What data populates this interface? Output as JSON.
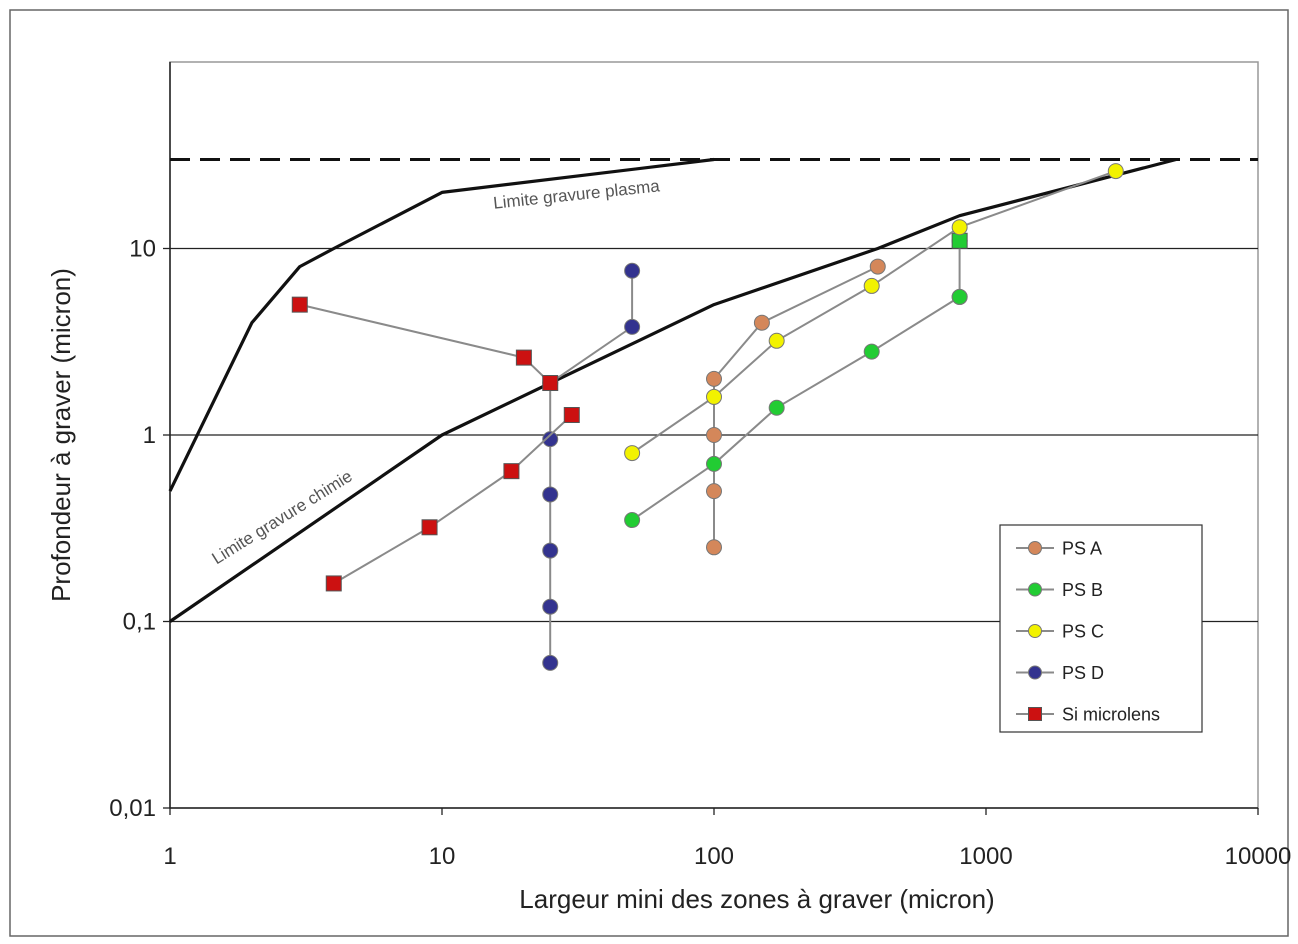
{
  "chart_data": {
    "type": "scatter",
    "title": "",
    "xlabel": "Largeur mini des zones à graver (micron)",
    "ylabel": "Profondeur à graver (micron)",
    "x_scale": "log",
    "y_scale": "log",
    "xlim": [
      1,
      10000
    ],
    "ylim": [
      0.01,
      100
    ],
    "x_ticks": [
      1,
      10,
      100,
      1000,
      10000
    ],
    "x_tick_labels": [
      "1",
      "10",
      "100",
      "1000",
      "10000"
    ],
    "y_ticks": [
      0.01,
      0.1,
      1,
      10
    ],
    "y_tick_labels": [
      "0,01",
      "0,1",
      "1",
      "10"
    ],
    "grid": "horizontal",
    "legend_position": "bottom-right",
    "reference_lines": [
      {
        "label": "Limite gravure plasma",
        "style": "solid",
        "points": [
          [
            1,
            0.5
          ],
          [
            2,
            4
          ],
          [
            3,
            8
          ],
          [
            4,
            10
          ],
          [
            10,
            20
          ],
          [
            100,
            30
          ]
        ]
      },
      {
        "label": "Limite gravure chimie",
        "style": "solid",
        "points": [
          [
            1,
            0.1
          ],
          [
            10,
            1
          ],
          [
            100,
            5
          ],
          [
            400,
            10
          ],
          [
            800,
            15
          ],
          [
            5000,
            30
          ]
        ]
      },
      {
        "label": "",
        "style": "dashed",
        "points": [
          [
            1,
            30
          ],
          [
            10000,
            30
          ]
        ]
      }
    ],
    "series": [
      {
        "name": "PS A",
        "color": "#d4875a",
        "marker": "circle",
        "segments": [
          [
            [
              100,
              0.25
            ],
            [
              100,
              0.5
            ],
            [
              100,
              1
            ],
            [
              100,
              2
            ],
            [
              150,
              4
            ],
            [
              400,
              8
            ]
          ]
        ]
      },
      {
        "name": "PS B",
        "color": "#22cc33",
        "marker": "circle",
        "segments": [
          [
            [
              50,
              0.35
            ],
            [
              100,
              0.7
            ],
            [
              170,
              1.4
            ],
            [
              380,
              2.8
            ],
            [
              800,
              5.5
            ]
          ],
          [
            [
              800,
              11
            ],
            [
              800,
              5.5
            ]
          ]
        ],
        "extra_markers": [
          {
            "x": 800,
            "y": 11,
            "shape": "square"
          }
        ]
      },
      {
        "name": "PS C",
        "color": "#f2f200",
        "marker": "circle",
        "segments": [
          [
            [
              50,
              0.8
            ],
            [
              100,
              1.6
            ],
            [
              170,
              3.2
            ],
            [
              380,
              6.3
            ],
            [
              800,
              13
            ],
            [
              3000,
              26
            ]
          ]
        ]
      },
      {
        "name": "PS D",
        "color": "#33338f",
        "marker": "circle",
        "segments": [
          [
            [
              25,
              0.06
            ],
            [
              25,
              0.12
            ],
            [
              25,
              0.24
            ],
            [
              25,
              0.48
            ],
            [
              25,
              0.95
            ],
            [
              25,
              1.9
            ],
            [
              50,
              3.8
            ],
            [
              50,
              7.6
            ]
          ]
        ]
      },
      {
        "name": "Si microlens",
        "color": "#cc1111",
        "marker": "square",
        "segments": [
          [
            [
              4,
              0.16
            ],
            [
              9,
              0.32
            ],
            [
              18,
              0.64
            ],
            [
              30,
              1.28
            ]
          ],
          [
            [
              3,
              5
            ],
            [
              20,
              2.6
            ],
            [
              25,
              1.9
            ]
          ]
        ]
      }
    ]
  }
}
